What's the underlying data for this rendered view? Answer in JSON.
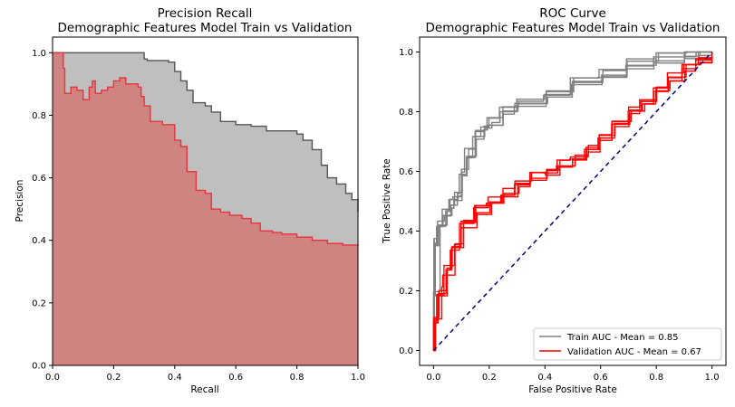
{
  "chart_data": [
    {
      "type": "area",
      "title": "Precision Recall",
      "subtitle": "Demographic Features Model Train vs Validation",
      "xlabel": "Recall",
      "ylabel": "Precision",
      "xlim": [
        0,
        1
      ],
      "ylim": [
        0,
        1.05
      ],
      "xticks": [
        "0.0",
        "0.2",
        "0.4",
        "0.6",
        "0.8",
        "1.0"
      ],
      "yticks": [
        "0.0",
        "0.2",
        "0.4",
        "0.6",
        "0.8",
        "1.0"
      ],
      "grid": false,
      "colors": {
        "train": "#555555",
        "train_fill": "#bfbfbf",
        "validation": "#e8323c",
        "validation_fill": "#d08482"
      },
      "series": [
        {
          "role": "train",
          "x": [
            0,
            0.3,
            0.31,
            0.38,
            0.4,
            0.42,
            0.44,
            0.46,
            0.5,
            0.52,
            0.55,
            0.6,
            0.65,
            0.7,
            0.75,
            0.8,
            0.82,
            0.85,
            0.88,
            0.9,
            0.93,
            0.96,
            0.98,
            1.0
          ],
          "y": [
            1.0,
            0.98,
            0.975,
            0.97,
            0.94,
            0.91,
            0.88,
            0.84,
            0.83,
            0.81,
            0.78,
            0.77,
            0.765,
            0.75,
            0.75,
            0.74,
            0.72,
            0.69,
            0.64,
            0.6,
            0.58,
            0.55,
            0.53,
            0.49
          ]
        },
        {
          "role": "validation",
          "x": [
            0,
            0.035,
            0.04,
            0.06,
            0.08,
            0.1,
            0.12,
            0.13,
            0.14,
            0.16,
            0.18,
            0.2,
            0.22,
            0.24,
            0.26,
            0.28,
            0.29,
            0.3,
            0.32,
            0.36,
            0.4,
            0.42,
            0.44,
            0.47,
            0.5,
            0.52,
            0.55,
            0.58,
            0.62,
            0.65,
            0.68,
            0.72,
            0.75,
            0.8,
            0.85,
            0.9,
            0.95,
            1.0
          ],
          "y": [
            1.0,
            0.95,
            0.87,
            0.89,
            0.88,
            0.85,
            0.89,
            0.91,
            0.87,
            0.88,
            0.89,
            0.91,
            0.92,
            0.9,
            0.9,
            0.89,
            0.86,
            0.83,
            0.78,
            0.77,
            0.72,
            0.7,
            0.62,
            0.56,
            0.55,
            0.5,
            0.49,
            0.48,
            0.47,
            0.455,
            0.43,
            0.425,
            0.42,
            0.41,
            0.4,
            0.39,
            0.385,
            0.38
          ]
        }
      ]
    },
    {
      "type": "line",
      "title": "ROC Curve",
      "subtitle": "Demographic Features Model Train vs Validation",
      "xlabel": "False Positive Rate",
      "ylabel": "True Positive Rate",
      "xlim": [
        -0.05,
        1.05
      ],
      "ylim": [
        -0.05,
        1.05
      ],
      "xticks": [
        "0.0",
        "0.2",
        "0.4",
        "0.6",
        "0.8",
        "1.0"
      ],
      "yticks": [
        "0.0",
        "0.2",
        "0.4",
        "0.6",
        "0.8",
        "1.0"
      ],
      "grid": false,
      "legend_position": "bottom-right",
      "diagonal": {
        "x": [
          0,
          1
        ],
        "y": [
          0,
          1
        ],
        "color": "#000080"
      },
      "colors": {
        "train": "#808080",
        "validation": "#ff0000"
      },
      "series": [
        {
          "name": "Train AUC - Mean = 0.85",
          "role": "train",
          "count": 5,
          "x": [
            0,
            0.002,
            0.01,
            0.02,
            0.04,
            0.06,
            0.08,
            0.1,
            0.12,
            0.15,
            0.18,
            0.2,
            0.24,
            0.3,
            0.4,
            0.5,
            0.6,
            0.7,
            0.8,
            0.9,
            0.95,
            1.0
          ],
          "y": [
            0,
            0.2,
            0.36,
            0.42,
            0.46,
            0.49,
            0.52,
            0.6,
            0.66,
            0.72,
            0.74,
            0.77,
            0.8,
            0.83,
            0.86,
            0.9,
            0.93,
            0.96,
            0.98,
            0.99,
            1.0,
            1.0
          ]
        },
        {
          "name": "Validation AUC - Mean = 0.67",
          "role": "validation",
          "count": 5,
          "x": [
            0,
            0.005,
            0.02,
            0.04,
            0.07,
            0.1,
            0.15,
            0.2,
            0.25,
            0.3,
            0.35,
            0.4,
            0.45,
            0.5,
            0.55,
            0.6,
            0.65,
            0.7,
            0.75,
            0.8,
            0.85,
            0.9,
            0.95,
            1.0
          ],
          "y": [
            0,
            0.1,
            0.2,
            0.27,
            0.34,
            0.42,
            0.47,
            0.5,
            0.53,
            0.56,
            0.58,
            0.6,
            0.63,
            0.65,
            0.68,
            0.72,
            0.76,
            0.8,
            0.84,
            0.88,
            0.92,
            0.95,
            0.98,
            1.0
          ]
        }
      ]
    }
  ]
}
